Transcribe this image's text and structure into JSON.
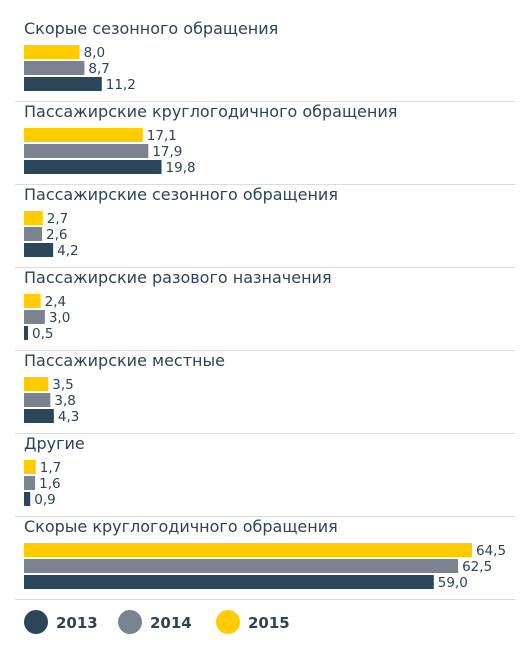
{
  "chart_data": {
    "type": "bar",
    "orientation": "horizontal",
    "categories": [
      "Скорые сезонного обращения",
      "Пассажирские круглогодичного обращения",
      "Пассажирские сезонного обращения",
      "Пассажирские разового назначения",
      "Пассажирские местные",
      "Другие",
      "Скорые круглогодичного обращения"
    ],
    "series": [
      {
        "name": "2015",
        "color": "#ffcc00",
        "values": [
          8.0,
          17.1,
          2.7,
          2.4,
          3.5,
          1.7,
          64.5
        ],
        "labels": [
          "8,0",
          "17,1",
          "2,7",
          "2,4",
          "3,5",
          "1,7",
          "64,5"
        ]
      },
      {
        "name": "2014",
        "color": "#7b8391",
        "values": [
          8.7,
          17.9,
          2.6,
          3.0,
          3.8,
          1.6,
          62.5
        ],
        "labels": [
          "8,7",
          "17,9",
          "2,6",
          "3,0",
          "3,8",
          "1,6",
          "62,5"
        ]
      },
      {
        "name": "2013",
        "color": "#2b4659",
        "values": [
          11.2,
          19.8,
          4.2,
          0.5,
          4.3,
          0.9,
          59.0
        ],
        "labels": [
          "11,2",
          "19,8",
          "4,2",
          "0,5",
          "4,3",
          "0,9",
          "59,0"
        ]
      }
    ],
    "legend": {
      "placement": "bottom-left",
      "items": [
        {
          "label": "2013",
          "color": "#2b4659"
        },
        {
          "label": "2014",
          "color": "#7b8391"
        },
        {
          "label": "2015",
          "color": "#ffcc00"
        }
      ]
    },
    "title": "",
    "xlabel": "",
    "ylabel": "",
    "grid": false,
    "xlim": [
      0,
      64.5
    ]
  }
}
